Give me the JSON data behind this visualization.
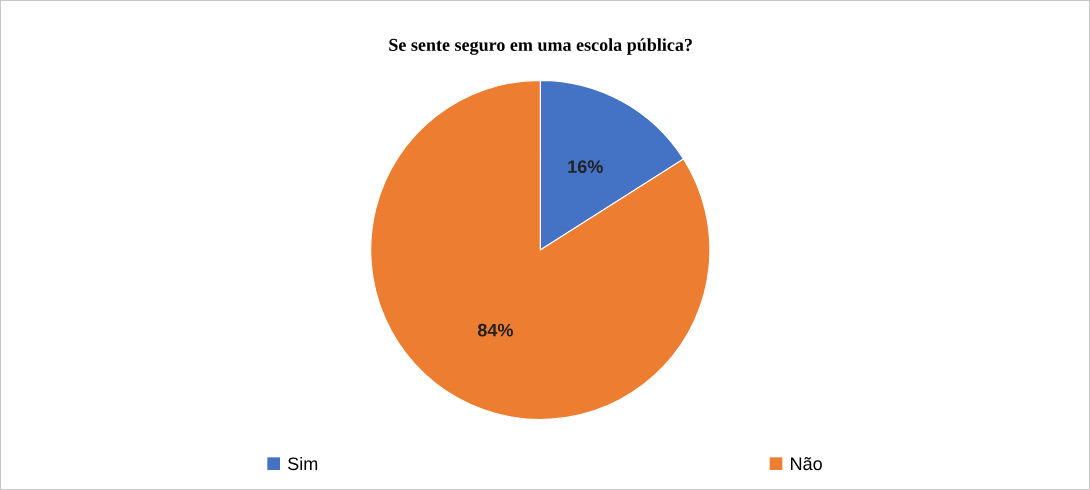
{
  "chart_data": {
    "type": "pie",
    "title": "Se sente seguro em uma escola pública?",
    "categories": [
      "Sim",
      "Não"
    ],
    "values": [
      16,
      84
    ],
    "colors": [
      "#4472c4",
      "#ed7d31"
    ],
    "value_labels": [
      "16%",
      "84%"
    ],
    "legend": "bottom"
  }
}
